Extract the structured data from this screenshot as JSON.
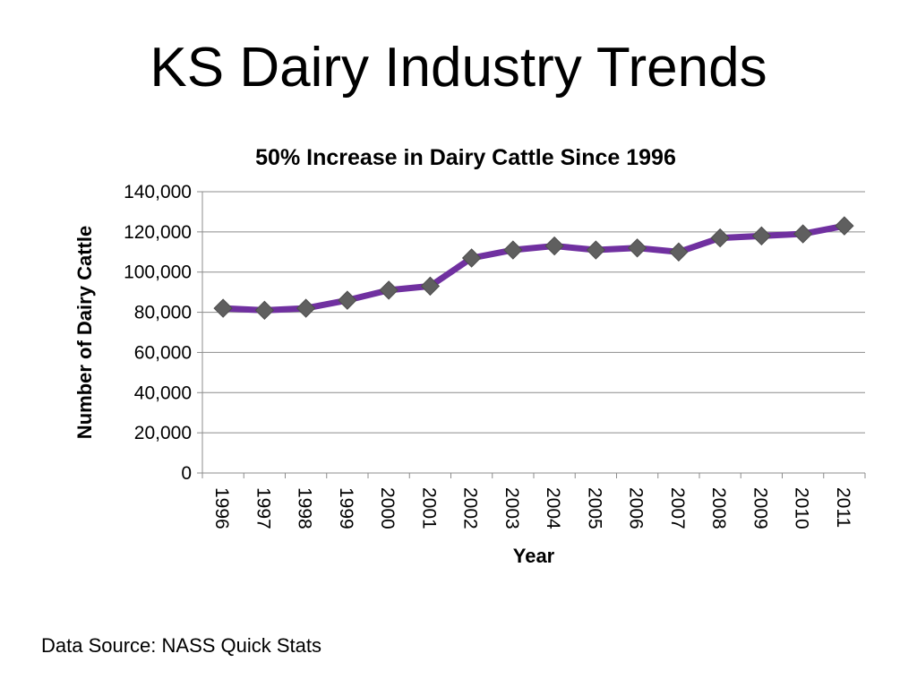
{
  "slide": {
    "title": "KS Dairy Industry Trends",
    "source": "Data Source: NASS Quick Stats"
  },
  "chart_data": {
    "type": "line",
    "title": "50% Increase in Dairy Cattle Since 1996",
    "xlabel": "Year",
    "ylabel": "Number of Dairy Cattle",
    "categories": [
      "1996",
      "1997",
      "1998",
      "1999",
      "2000",
      "2001",
      "2002",
      "2003",
      "2004",
      "2005",
      "2006",
      "2007",
      "2008",
      "2009",
      "2010",
      "2011"
    ],
    "series": [
      {
        "values": [
          82000,
          81000,
          82000,
          86000,
          91000,
          93000,
          107000,
          111000,
          113000,
          111000,
          112000,
          110000,
          117000,
          118000,
          119000,
          123000
        ],
        "color": "#7030a0",
        "marker": "diamond",
        "marker_color": "#5f5f5f"
      }
    ],
    "ylim": [
      0,
      140000
    ],
    "yticks": [
      "0",
      "20,000",
      "40,000",
      "60,000",
      "80,000",
      "100,000",
      "120,000",
      "140,000"
    ],
    "grid": true,
    "legend": "none"
  }
}
